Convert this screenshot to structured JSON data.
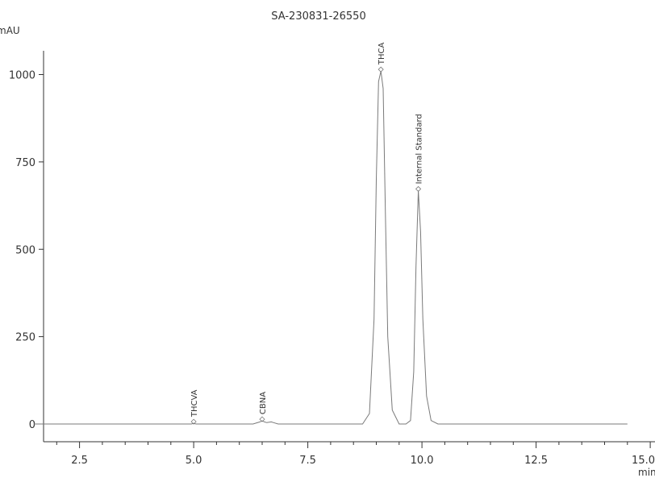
{
  "chart_data": {
    "type": "line",
    "title": "SA-230831-26550",
    "ylabel": "mAU",
    "xlabel": "min",
    "xlim": [
      1.5,
      15.0
    ],
    "ylim": [
      -50,
      1070
    ],
    "x_ticks": [
      "2.5",
      "5.0",
      "7.5",
      "10.0",
      "12.5",
      "15.0"
    ],
    "y_ticks": [
      "0",
      "250",
      "500",
      "750",
      "1000"
    ],
    "grid": false,
    "series": [
      {
        "x": [
          1.5,
          4.5,
          4.95,
          5.0,
          5.05,
          6.3,
          6.45,
          6.5,
          6.55,
          6.6,
          6.7,
          6.75,
          6.85,
          8.7,
          8.85,
          8.95,
          9.0,
          9.05,
          9.1,
          9.15,
          9.2,
          9.25,
          9.35,
          9.5,
          9.65,
          9.75,
          9.82,
          9.87,
          9.92,
          9.97,
          10.02,
          10.1,
          10.2,
          10.35,
          12.0,
          14.5
        ],
        "values": [
          0,
          0,
          0,
          2,
          0,
          0,
          6,
          9,
          6,
          4,
          6,
          4,
          0,
          0,
          30,
          300,
          700,
          980,
          1010,
          960,
          600,
          250,
          40,
          0,
          0,
          10,
          150,
          450,
          668,
          550,
          300,
          80,
          10,
          0,
          0,
          0
        ]
      }
    ],
    "peaks": [
      {
        "label": "THCVA",
        "x": 5.0,
        "y": 2
      },
      {
        "label": "CBNA",
        "x": 6.5,
        "y": 9
      },
      {
        "label": "THCA",
        "x": 9.1,
        "y": 1010
      },
      {
        "label": "Internal Standard",
        "x": 9.92,
        "y": 668
      }
    ]
  },
  "colors": {
    "trace": "#7a7a7a",
    "axis": "#333333",
    "text": "#333333"
  }
}
